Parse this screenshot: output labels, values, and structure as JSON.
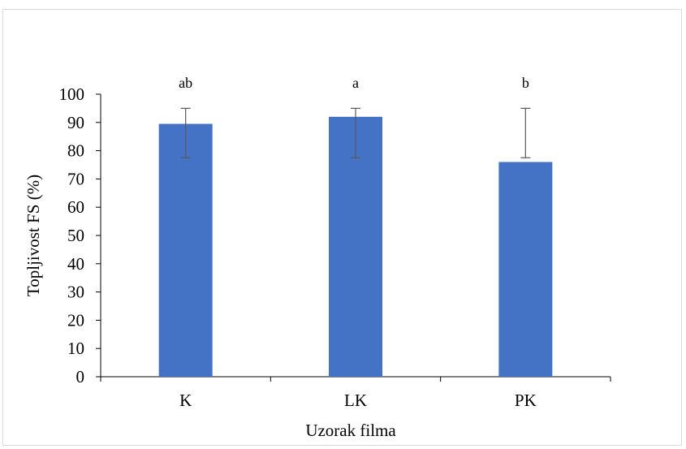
{
  "chart_data": {
    "type": "bar",
    "categories": [
      "K",
      "LK",
      "PK"
    ],
    "values": [
      89.5,
      92.0,
      76.0
    ],
    "error_low": [
      77.5,
      77.5,
      77.5
    ],
    "error_high": [
      95,
      95,
      95
    ],
    "significance_labels": [
      "ab",
      "a",
      "b"
    ],
    "xlabel": "Uzorak filma",
    "ylabel": "Topljivost FS (%)",
    "ylim": [
      0,
      100
    ],
    "yticks": [
      "0",
      "10",
      "20",
      "30",
      "40",
      "50",
      "60",
      "70",
      "80",
      "90",
      "100"
    ],
    "bar_color": "#4472c4",
    "error_color": "#595959",
    "grid": false
  }
}
